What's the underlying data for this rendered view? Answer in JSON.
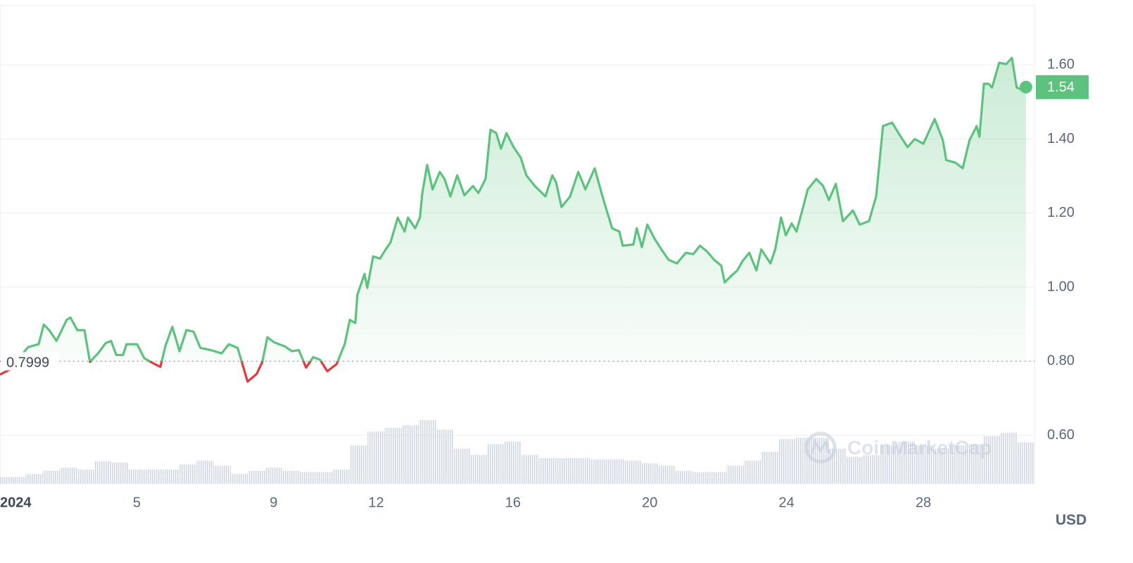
{
  "chart_data": {
    "type": "line",
    "x": [
      1.0,
      1.31,
      1.82,
      2.13,
      2.28,
      2.44,
      2.65,
      2.95,
      3.06,
      3.26,
      3.47,
      3.63,
      3.88,
      4.09,
      4.25,
      4.4,
      4.6,
      4.7,
      5.01,
      5.22,
      5.53,
      5.69,
      5.84,
      6.04,
      6.25,
      6.45,
      6.66,
      6.86,
      7.17,
      7.48,
      7.69,
      7.95,
      8.1,
      8.24,
      8.51,
      8.67,
      8.82,
      9.02,
      9.33,
      9.54,
      9.74,
      9.95,
      10.16,
      10.36,
      10.57,
      10.84,
      11.08,
      11.23,
      11.39,
      11.45,
      11.66,
      11.74,
      11.91,
      12.11,
      12.28,
      12.42,
      12.63,
      12.83,
      12.93,
      13.14,
      13.28,
      13.35,
      13.49,
      13.65,
      13.86,
      14.0,
      14.17,
      14.37,
      14.58,
      14.83,
      14.99,
      15.2,
      15.34,
      15.51,
      15.65,
      15.81,
      16.02,
      16.23,
      16.39,
      16.64,
      16.95,
      17.15,
      17.26,
      17.42,
      17.67,
      17.91,
      18.12,
      18.39,
      18.59,
      18.74,
      18.9,
      19.11,
      19.21,
      19.52,
      19.62,
      19.77,
      19.93,
      20.14,
      20.34,
      20.55,
      20.79,
      21.06,
      21.27,
      21.47,
      21.68,
      21.88,
      22.09,
      22.19,
      22.4,
      22.56,
      22.71,
      22.91,
      23.12,
      23.26,
      23.53,
      23.67,
      23.84,
      23.98,
      24.15,
      24.29,
      24.46,
      24.62,
      24.87,
      25.07,
      25.24,
      25.44,
      25.65,
      25.94,
      26.14,
      26.41,
      26.62,
      26.82,
      27.09,
      27.34,
      27.54,
      27.75,
      28.0,
      28.33,
      28.57,
      28.67,
      28.94,
      29.15,
      29.35,
      29.56,
      29.64,
      29.77,
      29.91,
      30.01,
      30.22,
      30.42,
      30.59,
      30.73,
      30.88,
      31.0
    ],
    "values": [
      0.764,
      0.779,
      0.838,
      0.846,
      0.899,
      0.884,
      0.855,
      0.912,
      0.918,
      0.884,
      0.884,
      0.798,
      0.823,
      0.849,
      0.855,
      0.817,
      0.817,
      0.846,
      0.846,
      0.808,
      0.792,
      0.785,
      0.842,
      0.893,
      0.827,
      0.884,
      0.88,
      0.836,
      0.83,
      0.821,
      0.846,
      0.836,
      0.789,
      0.745,
      0.766,
      0.798,
      0.865,
      0.851,
      0.84,
      0.827,
      0.83,
      0.783,
      0.811,
      0.804,
      0.773,
      0.792,
      0.846,
      0.912,
      0.903,
      0.979,
      1.036,
      0.998,
      1.083,
      1.077,
      1.102,
      1.121,
      1.188,
      1.15,
      1.188,
      1.159,
      1.188,
      1.254,
      1.33,
      1.264,
      1.311,
      1.292,
      1.245,
      1.302,
      1.248,
      1.273,
      1.254,
      1.292,
      1.425,
      1.416,
      1.374,
      1.416,
      1.378,
      1.349,
      1.302,
      1.273,
      1.245,
      1.302,
      1.283,
      1.216,
      1.245,
      1.311,
      1.264,
      1.321,
      1.254,
      1.207,
      1.159,
      1.15,
      1.112,
      1.115,
      1.159,
      1.108,
      1.169,
      1.131,
      1.102,
      1.074,
      1.064,
      1.093,
      1.089,
      1.112,
      1.096,
      1.074,
      1.058,
      1.013,
      1.032,
      1.045,
      1.07,
      1.093,
      1.045,
      1.102,
      1.064,
      1.102,
      1.188,
      1.14,
      1.172,
      1.15,
      1.207,
      1.264,
      1.292,
      1.273,
      1.235,
      1.279,
      1.178,
      1.207,
      1.169,
      1.178,
      1.245,
      1.435,
      1.444,
      1.406,
      1.378,
      1.4,
      1.387,
      1.454,
      1.397,
      1.343,
      1.336,
      1.321,
      1.397,
      1.435,
      1.406,
      1.549,
      1.549,
      1.539,
      1.606,
      1.602,
      1.619,
      1.539,
      1.533,
      1.54
    ],
    "color": "#5cc27d",
    "down_color": "#e0393e",
    "reference": 0.7999,
    "current_price": 1.54,
    "volume": {
      "x": [
        1,
        1.5,
        2,
        2.5,
        3,
        3.5,
        4,
        4.5,
        5,
        5.5,
        6,
        6.5,
        7,
        7.5,
        8,
        8.5,
        9,
        9.5,
        10,
        10.5,
        11,
        11.5,
        12,
        12.5,
        13,
        13.5,
        14,
        14.5,
        15,
        15.5,
        16,
        16.5,
        17,
        17.5,
        18,
        18.5,
        19,
        19.5,
        20,
        20.5,
        21,
        21.5,
        22,
        22.5,
        23,
        23.5,
        24,
        24.5,
        25,
        25.5,
        26,
        26.5,
        27,
        27.5,
        28,
        28.5,
        29,
        29.5,
        30,
        30.5,
        31
      ],
      "values": [
        10,
        10,
        15,
        20,
        25,
        22,
        35,
        33,
        22,
        22,
        22,
        30,
        36,
        28,
        15,
        20,
        25,
        20,
        18,
        18,
        22,
        60,
        82,
        88,
        92,
        100,
        85,
        55,
        45,
        62,
        66,
        45,
        40,
        40,
        40,
        38,
        38,
        36,
        32,
        28,
        20,
        18,
        18,
        28,
        36,
        50,
        70,
        72,
        72,
        55,
        42,
        45,
        60,
        66,
        60,
        55,
        60,
        62,
        75,
        80,
        65
      ],
      "color": "#d3d8e4"
    },
    "xlim": [
      1,
      31.25
    ],
    "xticks": [
      {
        "value": 1,
        "label": "2024"
      },
      5,
      9,
      12,
      16,
      20,
      24,
      28
    ],
    "ylim": [
      0.47,
      1.76
    ],
    "yticks": [
      {
        "value": 0.6,
        "label": "0.60"
      },
      {
        "value": 0.8,
        "label": "0.80"
      },
      {
        "value": 1.0,
        "label": "1.00"
      },
      {
        "value": 1.2,
        "label": "1.20"
      },
      {
        "value": 1.4,
        "label": "1.40"
      },
      {
        "value": 1.6,
        "label": "1.60"
      }
    ],
    "grid": true,
    "unit": "USD",
    "watermark": "CoinMarketCap"
  }
}
